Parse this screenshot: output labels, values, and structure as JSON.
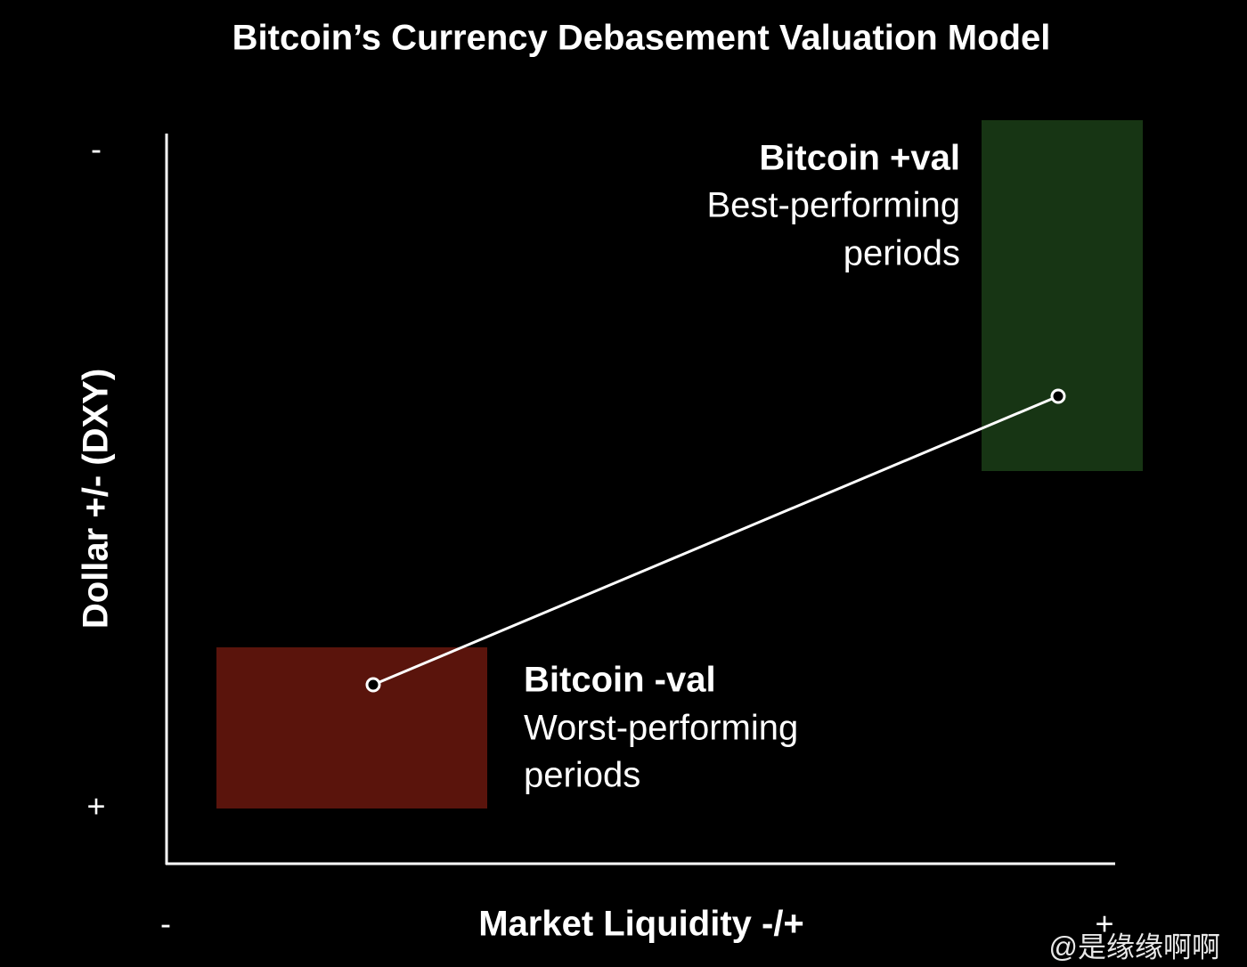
{
  "title": "Bitcoin’s Currency Debasement Valuation Model",
  "y_axis": {
    "label": "Dollar +/- (DXY)",
    "top_marker": "-",
    "bottom_marker": "+"
  },
  "x_axis": {
    "label": "Market Liquidity -/+",
    "left_marker": "-",
    "right_marker": "+"
  },
  "regions": [
    {
      "title": "Bitcoin -val",
      "lines": [
        "Worst-performing",
        "periods"
      ]
    },
    {
      "title": "Bitcoin +val",
      "lines": [
        "Best-performing",
        "periods"
      ]
    }
  ],
  "watermark": "@是缘缘啊啊"
}
